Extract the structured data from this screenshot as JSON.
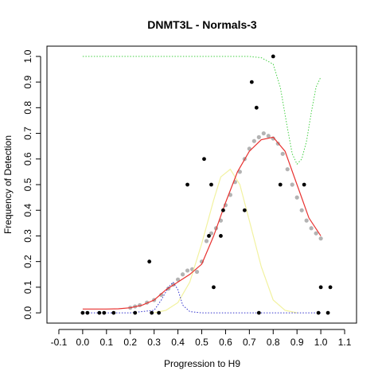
{
  "chart_data": {
    "type": "scatter",
    "title": "DNMT3L - Normals-3",
    "xlabel": "Progression to H9",
    "ylabel": "Frequency of Detection",
    "xlim": [
      -0.15,
      1.15
    ],
    "ylim": [
      -0.04,
      1.04
    ],
    "x_ticks": [
      "-0.1",
      "0.0",
      "0.1",
      "0.2",
      "0.3",
      "0.4",
      "0.5",
      "0.6",
      "0.7",
      "0.8",
      "0.9",
      "1.0",
      "1.1"
    ],
    "y_ticks": [
      "0.0",
      "0.1",
      "0.2",
      "0.3",
      "0.4",
      "0.5",
      "0.6",
      "0.7",
      "0.8",
      "0.9",
      "1.0"
    ],
    "grid": false,
    "legend": "none",
    "colors": {
      "observed": "#000000",
      "smoothed_points": "#b3b3b3",
      "fit": "#e8312f",
      "green_curve": "#44d044",
      "yellow_curve": "#f2f2a0",
      "blue_curve": "#3333cc"
    },
    "observed_points": [
      {
        "x": 0.0,
        "y": 0.0
      },
      {
        "x": 0.02,
        "y": 0.0
      },
      {
        "x": 0.07,
        "y": 0.0
      },
      {
        "x": 0.09,
        "y": 0.0
      },
      {
        "x": 0.13,
        "y": 0.0
      },
      {
        "x": 0.22,
        "y": 0.0
      },
      {
        "x": 0.28,
        "y": 0.2
      },
      {
        "x": 0.29,
        "y": 0.0
      },
      {
        "x": 0.32,
        "y": 0.0
      },
      {
        "x": 0.44,
        "y": 0.5
      },
      {
        "x": 0.51,
        "y": 0.6
      },
      {
        "x": 0.53,
        "y": 0.3
      },
      {
        "x": 0.54,
        "y": 0.5
      },
      {
        "x": 0.55,
        "y": 0.1
      },
      {
        "x": 0.58,
        "y": 0.3
      },
      {
        "x": 0.59,
        "y": 0.4
      },
      {
        "x": 0.68,
        "y": 0.4
      },
      {
        "x": 0.71,
        "y": 0.9
      },
      {
        "x": 0.73,
        "y": 0.8
      },
      {
        "x": 0.74,
        "y": 0.0
      },
      {
        "x": 0.8,
        "y": 1.0
      },
      {
        "x": 0.83,
        "y": 0.5
      },
      {
        "x": 0.93,
        "y": 0.5
      },
      {
        "x": 0.99,
        "y": 0.0
      },
      {
        "x": 1.0,
        "y": 0.1
      },
      {
        "x": 1.03,
        "y": 0.0
      },
      {
        "x": 1.04,
        "y": 0.1
      }
    ],
    "series": [
      {
        "key": "fit",
        "style": "solid",
        "x": [
          0.0,
          0.05,
          0.1,
          0.15,
          0.2,
          0.25,
          0.3,
          0.35,
          0.4,
          0.45,
          0.5,
          0.55,
          0.6,
          0.65,
          0.7,
          0.75,
          0.8,
          0.85,
          0.9,
          0.95,
          1.0
        ],
        "y": [
          0.015,
          0.015,
          0.015,
          0.016,
          0.02,
          0.03,
          0.05,
          0.09,
          0.12,
          0.15,
          0.19,
          0.3,
          0.43,
          0.55,
          0.63,
          0.675,
          0.685,
          0.63,
          0.5,
          0.37,
          0.3
        ]
      },
      {
        "key": "green",
        "style": "dotted",
        "x": [
          0.0,
          0.2,
          0.4,
          0.6,
          0.7,
          0.75,
          0.8,
          0.83,
          0.86,
          0.88,
          0.9,
          0.92,
          0.94,
          0.96,
          0.98,
          1.0
        ],
        "y": [
          1.0,
          1.0,
          1.0,
          1.0,
          1.0,
          0.995,
          0.97,
          0.88,
          0.72,
          0.62,
          0.58,
          0.6,
          0.67,
          0.78,
          0.88,
          0.92
        ]
      },
      {
        "key": "yellow",
        "style": "solid",
        "x": [
          0.3,
          0.35,
          0.4,
          0.45,
          0.5,
          0.55,
          0.58,
          0.62,
          0.66,
          0.7,
          0.75,
          0.8,
          0.85,
          0.9
        ],
        "y": [
          0.0,
          0.01,
          0.04,
          0.12,
          0.27,
          0.44,
          0.53,
          0.56,
          0.5,
          0.36,
          0.18,
          0.05,
          0.01,
          0.0
        ]
      },
      {
        "key": "blue",
        "style": "dotted",
        "x": [
          0.0,
          0.2,
          0.3,
          0.33,
          0.36,
          0.38,
          0.4,
          0.42,
          0.45,
          0.5,
          0.7,
          1.0
        ],
        "y": [
          0.0,
          0.0,
          0.01,
          0.05,
          0.1,
          0.12,
          0.09,
          0.03,
          0.005,
          0.0,
          0.0,
          0.0
        ]
      }
    ],
    "smoothed_points": {
      "x": [
        0.2,
        0.22,
        0.24,
        0.27,
        0.3,
        0.33,
        0.36,
        0.38,
        0.4,
        0.42,
        0.44,
        0.46,
        0.48,
        0.5,
        0.52,
        0.54,
        0.56,
        0.58,
        0.6,
        0.62,
        0.64,
        0.66,
        0.68,
        0.7,
        0.72,
        0.74,
        0.76,
        0.78,
        0.8,
        0.82,
        0.84,
        0.86,
        0.88,
        0.9,
        0.92,
        0.94,
        0.96,
        0.98,
        1.0
      ],
      "y": [
        0.02,
        0.025,
        0.03,
        0.04,
        0.05,
        0.07,
        0.095,
        0.11,
        0.13,
        0.15,
        0.165,
        0.17,
        0.16,
        0.2,
        0.28,
        0.31,
        0.33,
        0.36,
        0.42,
        0.46,
        0.51,
        0.55,
        0.6,
        0.64,
        0.67,
        0.685,
        0.7,
        0.69,
        0.68,
        0.66,
        0.62,
        0.56,
        0.5,
        0.45,
        0.4,
        0.36,
        0.33,
        0.31,
        0.29
      ]
    }
  }
}
